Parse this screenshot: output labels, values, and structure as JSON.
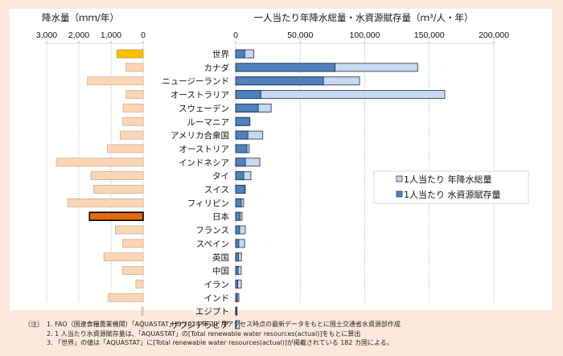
{
  "chart_data": [
    {
      "type": "bar",
      "orientation": "horizontal",
      "direction": "right-to-left",
      "title": "降水量（ｍｍ/年）",
      "xlabel": "降水量（ｍｍ/年）",
      "xlim": [
        0,
        3000
      ],
      "ticks": [
        {
          "value": 3000,
          "label": "3,000"
        },
        {
          "value": 2000,
          "label": "2,000"
        },
        {
          "value": 1000,
          "label": "1,000"
        },
        {
          "value": 0,
          "label": "0"
        }
      ],
      "grid": true,
      "categories": [
        "世界",
        "カナダ",
        "ニュージーランド",
        "オーストラリア",
        "スウェーデン",
        "ルーマニア",
        "アメリカ合衆国",
        "オーストリア",
        "インドネシア",
        "タイ",
        "スイス",
        "フィリピン",
        "日本",
        "フランス",
        "スペイン",
        "英国",
        "中国",
        "イラン",
        "インド",
        "エジプト",
        "サウジアラビア"
      ],
      "values": [
        814,
        537,
        1732,
        534,
        624,
        637,
        715,
        1110,
        2702,
        1622,
        1537,
        2348,
        1668,
        867,
        636,
        1220,
        645,
        228,
        1083,
        51,
        59
      ],
      "highlight": {
        "世界": "#ffc000",
        "日本": "#e36c09"
      },
      "default_color": "#fcd5b5"
    },
    {
      "type": "bar",
      "orientation": "horizontal",
      "stacked": "overlay",
      "title": "一人当たり年降水総量・水資源賦存量（ｍ³/人・年）",
      "xlim": [
        0,
        200000
      ],
      "ticks": [
        {
          "value": 0,
          "label": "0"
        },
        {
          "value": 50000,
          "label": "50,000"
        },
        {
          "value": 100000,
          "label": "100,000"
        },
        {
          "value": 150000,
          "label": "150,000"
        },
        {
          "value": 200000,
          "label": "200,000"
        }
      ],
      "grid": true,
      "legend_position": "right-middle",
      "categories": [
        "世界",
        "カナダ",
        "ニュージーランド",
        "オーストラリア",
        "スウェーデン",
        "ルーマニア",
        "アメリカ合衆国",
        "オーストリア",
        "インドネシア",
        "タイ",
        "スイス",
        "フィリピン",
        "日本",
        "フランス",
        "スペイン",
        "英国",
        "中国",
        "イラン",
        "インド",
        "エジプト",
        "サウジアラビア"
      ],
      "series": [
        {
          "name": "1人当たり 年降水総量",
          "color": "#c6d9f1",
          "values": [
            14000,
            141000,
            96000,
            162000,
            27500,
            11000,
            21000,
            10500,
            18700,
            11800,
            7500,
            6200,
            5000,
            7500,
            7000,
            4500,
            4300,
            4400,
            2500,
            1100,
            3000
          ]
        },
        {
          "name": "1人当たり 水資源賦存量",
          "color": "#4f81bd",
          "values": [
            7000,
            77000,
            68000,
            19500,
            17500,
            11000,
            9500,
            8700,
            7500,
            6200,
            6800,
            4400,
            3400,
            3100,
            2400,
            2200,
            2000,
            1600,
            1400,
            600,
            100
          ]
        }
      ]
    }
  ],
  "notes": {
    "prefix": "（注）",
    "lines": [
      "1. FAO（国連食糧農業機関）「AQUASTAT」の 2024 年 11 月アクセス時点の最新データをもとに国土交通省水資源部作成",
      "2. 1 人当たり水資源賦存量は、「AQUASTAT」の[Total renewable water resources(actual)]をもとに算出",
      "3. 「世界」の値は「AQUASTAT」に[Total renewable water resources(actual)]が掲載されている 182 カ国による。"
    ]
  }
}
